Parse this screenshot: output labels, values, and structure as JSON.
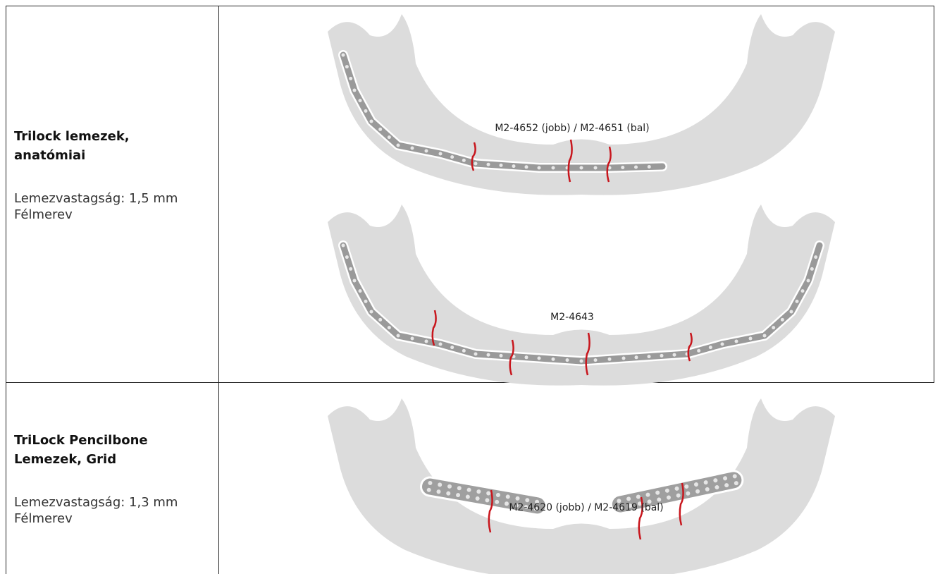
{
  "table": {
    "rows": [
      {
        "title": "Trilock lemezek, anatómiai",
        "details": [
          "Lemezvastagság: 1,5 mm",
          "Félmerev"
        ],
        "images": [
          {
            "label": "M2-4652 (jobb) / M2-4651 (bal)"
          },
          {
            "label": "M2-4643"
          }
        ]
      },
      {
        "title": "TriLock Pencilbone Lemezek, Grid",
        "details": [
          "Lemezvastagság: 1,3 mm",
          "Félmerev"
        ],
        "images": [
          {
            "label": "M2-4620 (jobb) / M2-4619 (bal)"
          }
        ]
      }
    ]
  }
}
